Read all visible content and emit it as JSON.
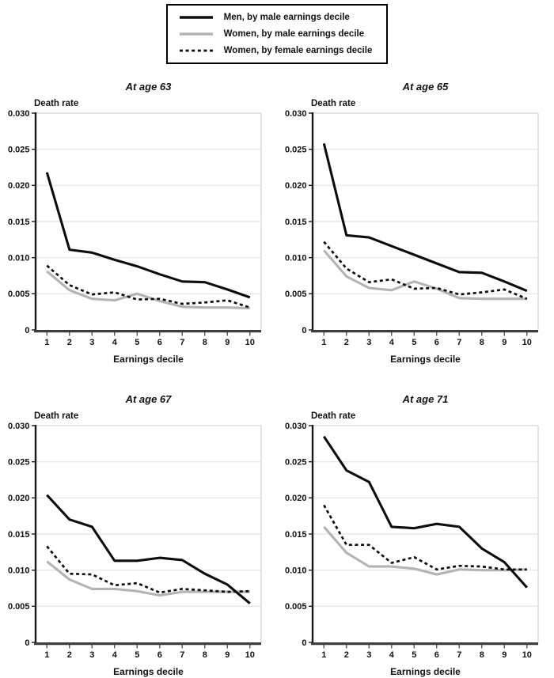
{
  "page": {
    "background": "#ffffff"
  },
  "style": {
    "black_line_color": "#0d0d0d",
    "gray_line_color": "#b3b3b3",
    "grid_color": "#e2e2e2",
    "border_color": "#dddddd",
    "left_axis_color": "#1a1a1a",
    "bottom_axis_color": "#3d3d3d",
    "tick_color": "#555555"
  },
  "legend": {
    "items": [
      {
        "label": "Men, by male earnings decile",
        "line_style": "solid",
        "color": "#0d0d0d"
      },
      {
        "label": "Women, by male earnings decile",
        "line_style": "solid",
        "color": "#b3b3b3"
      },
      {
        "label": "Women, by female earnings decile",
        "line_style": "dashed",
        "color": "#0d0d0d"
      }
    ]
  },
  "axes": {
    "yticks": [
      0,
      0.005,
      0.01,
      0.015,
      0.02,
      0.025,
      0.03
    ],
    "ytick_labels": [
      "0",
      "0.005",
      "0.010",
      "0.015",
      "0.020",
      "0.025",
      "0.030"
    ],
    "xticks": [
      1,
      2,
      3,
      4,
      5,
      6,
      7,
      8,
      9,
      10
    ]
  },
  "chart_data": [
    {
      "type": "line",
      "title": "At age 63",
      "ylabel": "Death rate",
      "xlabel": "Earnings decile",
      "x": [
        1,
        2,
        3,
        4,
        5,
        6,
        7,
        8,
        9,
        10
      ],
      "ylim": [
        0,
        0.03
      ],
      "grid": true,
      "series": [
        {
          "name": "Men, by male earnings decile",
          "style": "solid",
          "color": "#0d0d0d",
          "values": [
            0.0218,
            0.0111,
            0.0107,
            0.0097,
            0.0088,
            0.0077,
            0.0067,
            0.0066,
            0.0056,
            0.0045
          ]
        },
        {
          "name": "Women, by male earnings decile",
          "style": "solid",
          "color": "#b3b3b3",
          "values": [
            0.0081,
            0.0055,
            0.0043,
            0.0041,
            0.005,
            0.004,
            0.0032,
            0.0031,
            0.0031,
            0.003
          ]
        },
        {
          "name": "Women, by female earnings decile",
          "style": "dashed",
          "color": "#0d0d0d",
          "values": [
            0.0089,
            0.0062,
            0.0049,
            0.0052,
            0.0042,
            0.0043,
            0.0036,
            0.0038,
            0.0041,
            0.0031
          ]
        }
      ]
    },
    {
      "type": "line",
      "title": "At age 65",
      "ylabel": "Death rate",
      "xlabel": "Earnings decile",
      "x": [
        1,
        2,
        3,
        4,
        5,
        6,
        7,
        8,
        9,
        10
      ],
      "ylim": [
        0,
        0.03
      ],
      "grid": true,
      "series": [
        {
          "name": "Men, by male earnings decile",
          "style": "solid",
          "color": "#0d0d0d",
          "values": [
            0.0258,
            0.0131,
            0.0128,
            0.0116,
            0.0104,
            0.0092,
            0.008,
            0.0079,
            0.0067,
            0.0054
          ]
        },
        {
          "name": "Women, by male earnings decile",
          "style": "solid",
          "color": "#b3b3b3",
          "values": [
            0.011,
            0.0074,
            0.0058,
            0.0055,
            0.0067,
            0.0057,
            0.0044,
            0.0043,
            0.0043,
            0.0043
          ]
        },
        {
          "name": "Women, by female earnings decile",
          "style": "dashed",
          "color": "#0d0d0d",
          "values": [
            0.0122,
            0.0085,
            0.0066,
            0.007,
            0.0057,
            0.0058,
            0.0049,
            0.0052,
            0.0056,
            0.0043
          ]
        }
      ]
    },
    {
      "type": "line",
      "title": "At age 67",
      "ylabel": "Death rate",
      "xlabel": "Earnings decile",
      "x": [
        1,
        2,
        3,
        4,
        5,
        6,
        7,
        8,
        9,
        10
      ],
      "ylim": [
        0,
        0.03
      ],
      "grid": true,
      "series": [
        {
          "name": "Men, by male earnings decile",
          "style": "solid",
          "color": "#0d0d0d",
          "values": [
            0.0204,
            0.017,
            0.016,
            0.0113,
            0.0113,
            0.0117,
            0.0114,
            0.0095,
            0.008,
            0.0054
          ]
        },
        {
          "name": "Women, by male earnings decile",
          "style": "solid",
          "color": "#b3b3b3",
          "values": [
            0.0112,
            0.0087,
            0.0074,
            0.0074,
            0.0071,
            0.0065,
            0.007,
            0.007,
            0.007,
            0.007
          ]
        },
        {
          "name": "Women, by female earnings decile",
          "style": "dashed",
          "color": "#0d0d0d",
          "values": [
            0.0133,
            0.0095,
            0.0094,
            0.0079,
            0.0082,
            0.0069,
            0.0074,
            0.0072,
            0.007,
            0.0071
          ]
        }
      ]
    },
    {
      "type": "line",
      "title": "At age 71",
      "ylabel": "Death rate",
      "xlabel": "Earnings decile",
      "x": [
        1,
        2,
        3,
        4,
        5,
        6,
        7,
        8,
        9,
        10
      ],
      "ylim": [
        0,
        0.03
      ],
      "grid": true,
      "series": [
        {
          "name": "Men, by male earnings decile",
          "style": "solid",
          "color": "#0d0d0d",
          "values": [
            0.0285,
            0.0238,
            0.0222,
            0.016,
            0.0158,
            0.0164,
            0.016,
            0.013,
            0.0111,
            0.0076
          ]
        },
        {
          "name": "Women, by male earnings decile",
          "style": "solid",
          "color": "#b3b3b3",
          "values": [
            0.016,
            0.0124,
            0.0105,
            0.0105,
            0.0102,
            0.0094,
            0.0101,
            0.01,
            0.01,
            0.0101
          ]
        },
        {
          "name": "Women, by female earnings decile",
          "style": "dashed",
          "color": "#0d0d0d",
          "values": [
            0.019,
            0.0135,
            0.0135,
            0.011,
            0.0118,
            0.0101,
            0.0106,
            0.0105,
            0.0101,
            0.0101
          ]
        }
      ]
    }
  ]
}
